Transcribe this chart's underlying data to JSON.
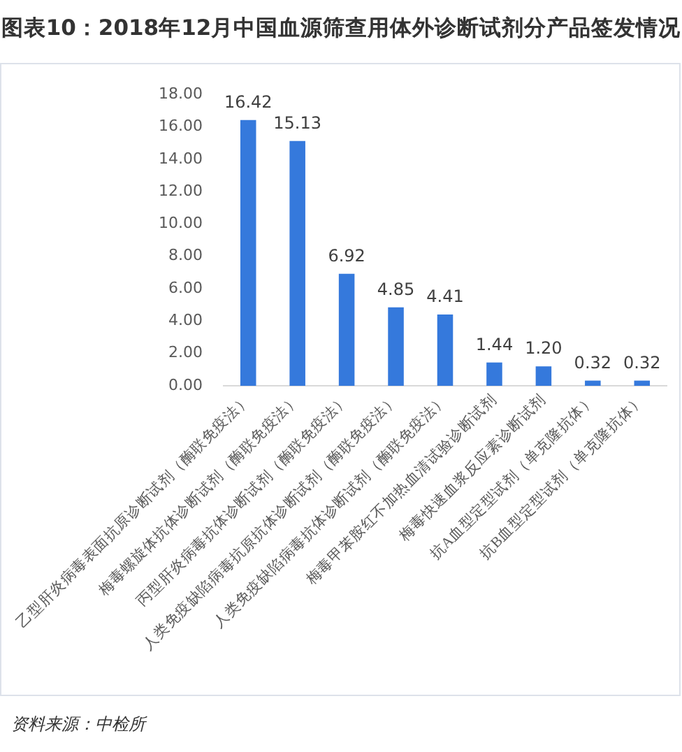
{
  "chart_data": {
    "type": "bar",
    "title": "图表10：2018年12月中国血源筛查用体外诊断试剂分产品签发情况",
    "categories": [
      "乙型肝炎病毒表面抗原诊断试剂（酶联免疫法）",
      "梅毒螺旋体抗体诊断试剂（酶联免疫法）",
      "丙型肝炎病毒抗体诊断试剂（酶联免疫法）",
      "人类免疫缺陷病毒抗原抗体诊断试剂（酶联免疫法）",
      "人类免疫缺陷病毒抗体诊断试剂（酶联免疫法）",
      "梅毒甲苯胺红不加热血清试验诊断试剂",
      "梅毒快速血浆反应素诊断试剂",
      "抗A血型定型试剂（单克隆抗体）",
      "抗B血型定型试剂（单克隆抗体）"
    ],
    "values": [
      16.42,
      15.13,
      6.92,
      4.85,
      4.41,
      1.44,
      1.2,
      0.32,
      0.32
    ],
    "value_labels": [
      "16.42",
      "15.13",
      "6.92",
      "4.85",
      "4.41",
      "1.44",
      "1.20",
      "0.32",
      "0.32"
    ],
    "color": "#3579dc",
    "ylim": [
      0,
      18
    ],
    "yticks": [
      {
        "value": 0,
        "label": "0.00"
      },
      {
        "value": 2,
        "label": "2.00"
      },
      {
        "value": 4,
        "label": "4.00"
      },
      {
        "value": 6,
        "label": "6.00"
      },
      {
        "value": 8,
        "label": "8.00"
      },
      {
        "value": 10,
        "label": "10.00"
      },
      {
        "value": 12,
        "label": "12.00"
      },
      {
        "value": 14,
        "label": "14.00"
      },
      {
        "value": 16,
        "label": "16.00"
      },
      {
        "value": 18,
        "label": "18.00"
      }
    ],
    "grid": false,
    "annotations": [
      "资料来源：中检所"
    ]
  }
}
